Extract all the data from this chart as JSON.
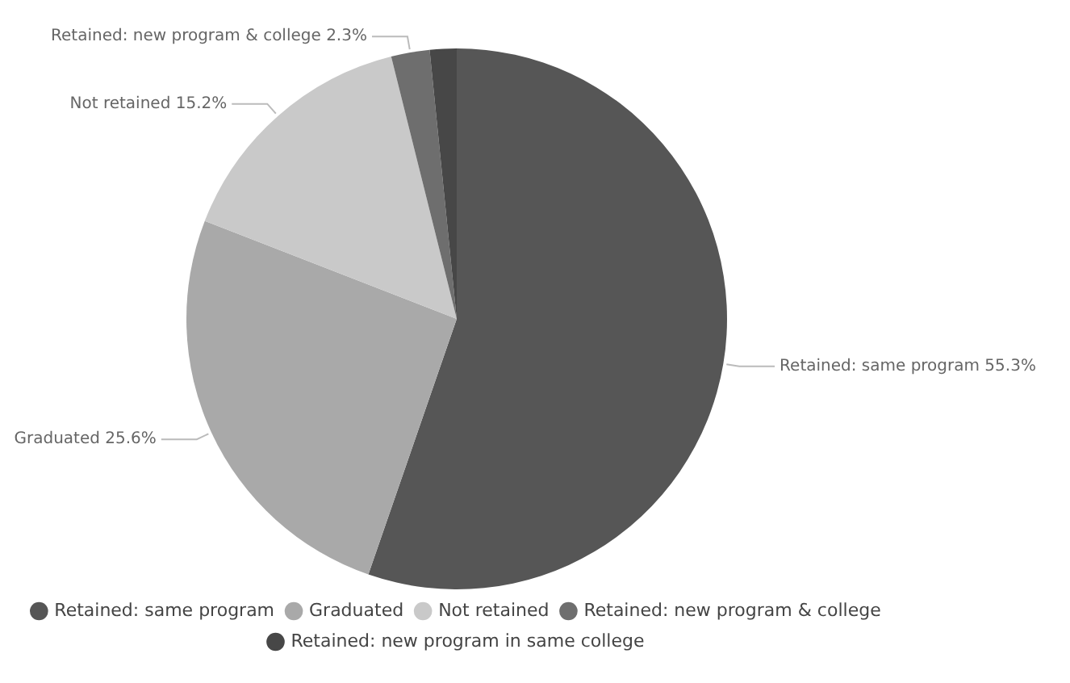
{
  "chart_data": {
    "type": "pie",
    "categories": [
      "Retained: same program",
      "Graduated",
      "Not retained",
      "Retained: new program & college",
      "Retained: new program in same college"
    ],
    "values": [
      55.3,
      25.6,
      15.2,
      2.3,
      1.6
    ],
    "value_labels": [
      "55.3%",
      "25.6%",
      "15.2%",
      "2.3%",
      null
    ],
    "colors": [
      "#565656",
      "#a9a9a9",
      "#c9c9c9",
      "#6e6e6e",
      "#474747"
    ],
    "legend": "bottom"
  }
}
